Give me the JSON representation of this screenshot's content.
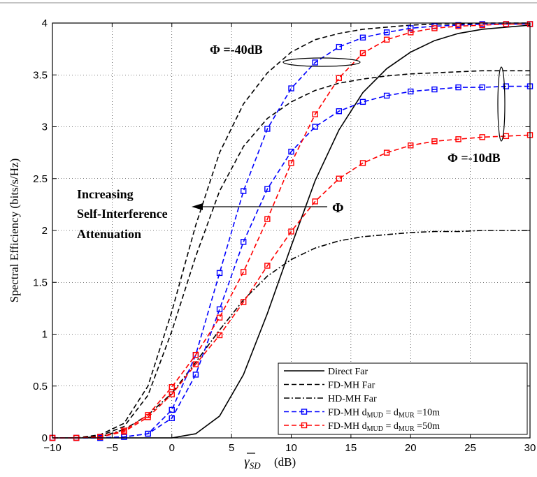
{
  "chart_data": {
    "type": "line",
    "title": "",
    "xlabel": "γ̄SD (dB)",
    "ylabel": "Spectral Efficiency (bits/s/Hz)",
    "xlim": [
      -10,
      30
    ],
    "ylim": [
      0,
      4
    ],
    "x_ticks": [
      -10,
      -5,
      0,
      5,
      10,
      15,
      20,
      25,
      30
    ],
    "y_ticks": [
      0,
      0.5,
      1,
      1.5,
      2,
      2.5,
      3,
      3.5,
      4
    ],
    "x_tick_labels": [
      "−10",
      "−5",
      "0",
      "5",
      "10",
      "15",
      "20",
      "25",
      "30"
    ],
    "y_tick_labels": [
      "0",
      "0.5",
      "1",
      "1.5",
      "2",
      "2.5",
      "3",
      "3.5",
      "4"
    ],
    "grid": true,
    "legend_position": "bottom-right",
    "colors": {
      "blue": "#0000ff",
      "red": "#ff0000",
      "black": "#000000"
    },
    "legend": [
      {
        "label": "Direct Far",
        "style": "solid",
        "color": "#000000",
        "marker": "none"
      },
      {
        "label": "FD-MH Far",
        "style": "dashed",
        "color": "#000000",
        "marker": "none"
      },
      {
        "label": "HD-MH Far",
        "style": "dashdot",
        "color": "#000000",
        "marker": "none"
      },
      {
        "label": "FD-MH dMUD = dMUR =10m",
        "style": "dashed",
        "color": "#0000ff",
        "marker": "square"
      },
      {
        "label": "FD-MH dMUD = dMUR =50m",
        "style": "dashed",
        "color": "#ff0000",
        "marker": "square"
      }
    ],
    "annotations": {
      "phi40": "Φ =-40dB",
      "phi10": "Φ =-10dB",
      "arrow_line1": "Increasing",
      "arrow_line2": "Self-Interference",
      "arrow_line3": "Attenuation",
      "arrow_symbol": "Φ"
    },
    "series": [
      {
        "id": "direct-far",
        "color": "#000000",
        "style": "solid",
        "marker": "none",
        "x": [
          -10,
          -8,
          -6,
          -4,
          -2,
          0,
          2,
          4,
          6,
          8,
          10,
          12,
          14,
          16,
          18,
          20,
          22,
          24,
          26,
          28,
          30
        ],
        "y": [
          0,
          0,
          0,
          0,
          0,
          0,
          0.04,
          0.21,
          0.61,
          1.2,
          1.85,
          2.48,
          2.97,
          3.33,
          3.56,
          3.72,
          3.83,
          3.9,
          3.94,
          3.96,
          3.98
        ]
      },
      {
        "id": "fd-mh-far-40",
        "color": "#000000",
        "style": "dashed",
        "marker": "none",
        "x": [
          -10,
          -8,
          -6,
          -4,
          -2,
          0,
          2,
          4,
          6,
          8,
          10,
          12,
          14,
          16,
          18,
          20,
          22,
          24,
          26,
          28,
          30
        ],
        "y": [
          0,
          0,
          0.03,
          0.14,
          0.5,
          1.22,
          2.05,
          2.75,
          3.22,
          3.52,
          3.72,
          3.84,
          3.9,
          3.94,
          3.96,
          3.98,
          3.99,
          3.99,
          4.0,
          4.0,
          4.0
        ]
      },
      {
        "id": "fd-mh-far-10",
        "color": "#000000",
        "style": "dashed",
        "marker": "none",
        "x": [
          -10,
          -8,
          -6,
          -4,
          -2,
          0,
          2,
          4,
          6,
          8,
          10,
          12,
          14,
          16,
          18,
          20,
          22,
          24,
          26,
          28,
          30
        ],
        "y": [
          0,
          0,
          0.02,
          0.11,
          0.41,
          1.03,
          1.75,
          2.38,
          2.81,
          3.08,
          3.24,
          3.35,
          3.42,
          3.46,
          3.49,
          3.51,
          3.52,
          3.53,
          3.54,
          3.54,
          3.54
        ]
      },
      {
        "id": "hd-mh-far",
        "color": "#000000",
        "style": "dashdot",
        "marker": "none",
        "x": [
          -10,
          -8,
          -6,
          -4,
          -2,
          0,
          2,
          4,
          6,
          8,
          10,
          12,
          14,
          16,
          18,
          20,
          22,
          24,
          26,
          28,
          30
        ],
        "y": [
          0,
          0,
          0.01,
          0.08,
          0.22,
          0.43,
          0.73,
          1.04,
          1.33,
          1.56,
          1.72,
          1.83,
          1.9,
          1.94,
          1.96,
          1.98,
          1.99,
          1.99,
          2.0,
          2.0,
          2.0
        ]
      },
      {
        "id": "blue-40",
        "color": "#0000ff",
        "style": "dashed",
        "marker": "square",
        "x": [
          -10,
          -8,
          -6,
          -4,
          -2,
          0,
          2,
          4,
          6,
          8,
          10,
          12,
          14,
          16,
          18,
          20,
          22,
          24,
          26,
          28,
          30
        ],
        "y": [
          0,
          0,
          0,
          0.01,
          0.04,
          0.27,
          0.8,
          1.59,
          2.38,
          2.98,
          3.37,
          3.62,
          3.77,
          3.86,
          3.91,
          3.95,
          3.97,
          3.98,
          3.99,
          3.99,
          3.99
        ]
      },
      {
        "id": "blue-10",
        "color": "#0000ff",
        "style": "dashed",
        "marker": "square",
        "x": [
          -10,
          -8,
          -6,
          -4,
          -2,
          0,
          2,
          4,
          6,
          8,
          10,
          12,
          14,
          16,
          18,
          20,
          22,
          24,
          26,
          28,
          30
        ],
        "y": [
          0,
          0,
          0,
          0.01,
          0.04,
          0.19,
          0.61,
          1.24,
          1.89,
          2.4,
          2.76,
          3.0,
          3.15,
          3.24,
          3.3,
          3.34,
          3.36,
          3.38,
          3.38,
          3.39,
          3.39
        ]
      },
      {
        "id": "red-40",
        "color": "#ff0000",
        "style": "dashed",
        "marker": "square",
        "x": [
          -10,
          -8,
          -6,
          -4,
          -2,
          0,
          2,
          4,
          6,
          8,
          10,
          12,
          14,
          16,
          18,
          20,
          22,
          24,
          26,
          28,
          30
        ],
        "y": [
          0,
          0,
          0.01,
          0.07,
          0.22,
          0.49,
          0.8,
          1.16,
          1.6,
          2.11,
          2.65,
          3.12,
          3.47,
          3.71,
          3.84,
          3.91,
          3.95,
          3.97,
          3.98,
          3.99,
          3.99
        ]
      },
      {
        "id": "red-10",
        "color": "#ff0000",
        "style": "dashed",
        "marker": "square",
        "x": [
          -10,
          -8,
          -6,
          -4,
          -2,
          0,
          2,
          4,
          6,
          8,
          10,
          12,
          14,
          16,
          18,
          20,
          22,
          24,
          26,
          28,
          30
        ],
        "y": [
          0,
          0,
          0.01,
          0.06,
          0.2,
          0.42,
          0.71,
          0.99,
          1.31,
          1.66,
          1.99,
          2.28,
          2.5,
          2.65,
          2.75,
          2.82,
          2.86,
          2.88,
          2.9,
          2.91,
          2.92
        ]
      }
    ]
  }
}
